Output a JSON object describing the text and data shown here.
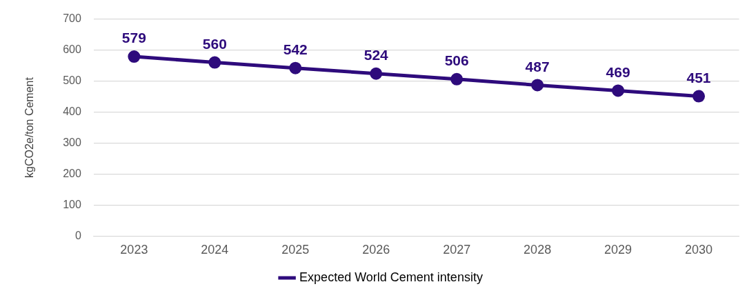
{
  "chart_data": {
    "type": "line",
    "ylabel": "kgCO2e/ton Cement",
    "categories": [
      "2023",
      "2024",
      "2025",
      "2026",
      "2027",
      "2028",
      "2029",
      "2030"
    ],
    "series": [
      {
        "name": "Expected World Cement intensity",
        "color": "#2e0b7c",
        "values": [
          579,
          560,
          542,
          524,
          506,
          487,
          469,
          451
        ]
      }
    ],
    "ylim": [
      0,
      700
    ],
    "yticks": [
      0,
      100,
      200,
      300,
      400,
      500,
      600,
      700
    ],
    "grid": "y",
    "legend": "bottom",
    "marker": "circle",
    "line_style": "solid",
    "data_labels": true
  }
}
